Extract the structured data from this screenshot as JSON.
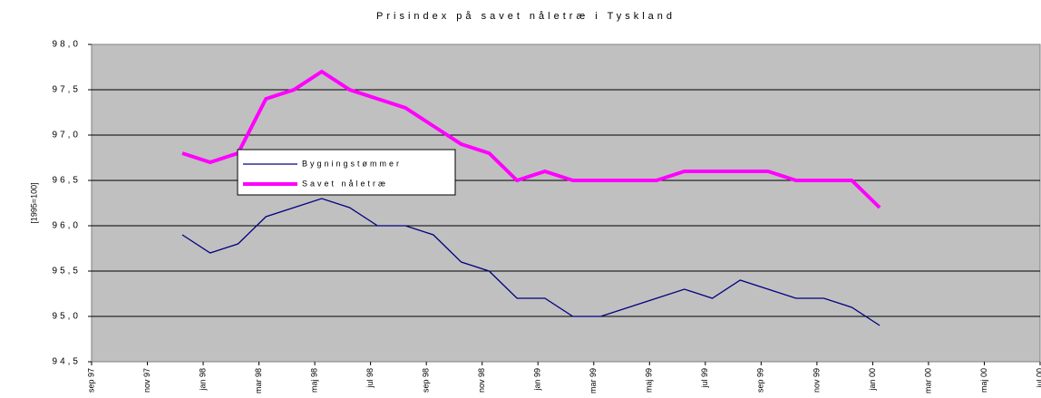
{
  "chart_data": {
    "type": "line",
    "title": "Prisindex på savet nåletræ i Tyskland",
    "y_label": "[1995=100]",
    "x": [
      "1997-12",
      "1998-01",
      "1998-02",
      "1998-03",
      "1998-04",
      "1998-05",
      "1998-06",
      "1998-07",
      "1998-08",
      "1998-09",
      "1998-10",
      "1998-11",
      "1998-12",
      "1999-01",
      "1999-02",
      "1999-03",
      "1999-04",
      "1999-05",
      "1999-06",
      "1999-07",
      "1999-08",
      "1999-09",
      "1999-10",
      "1999-11",
      "1999-12",
      "2000-01"
    ],
    "series": [
      {
        "name": "Bygningstømmer",
        "color": "#000080",
        "values": [
          95.9,
          95.7,
          95.8,
          96.1,
          96.2,
          96.3,
          96.2,
          96.0,
          96.0,
          95.9,
          95.6,
          95.5,
          95.2,
          95.2,
          95.0,
          95.0,
          95.1,
          95.2,
          95.3,
          95.2,
          95.4,
          95.3,
          95.2,
          95.2,
          95.1,
          94.9
        ]
      },
      {
        "name": "Savet nåletræ",
        "color": "#ff00ff",
        "values": [
          96.8,
          96.7,
          96.8,
          97.4,
          97.5,
          97.7,
          97.5,
          97.4,
          97.3,
          97.1,
          96.9,
          96.8,
          96.5,
          96.6,
          96.5,
          96.5,
          96.5,
          96.5,
          96.6,
          96.6,
          96.6,
          96.6,
          96.5,
          96.5,
          96.5,
          96.2
        ]
      }
    ],
    "xlim": [
      "1997-09",
      "2000-07"
    ],
    "xticks": [
      {
        "value": "1997-09",
        "label": "sep 97"
      },
      {
        "value": "1997-11",
        "label": "nov 97"
      },
      {
        "value": "1998-01",
        "label": "jan 98"
      },
      {
        "value": "1998-03",
        "label": "mar 98"
      },
      {
        "value": "1998-05",
        "label": "maj 98"
      },
      {
        "value": "1998-07",
        "label": "jul 98"
      },
      {
        "value": "1998-09",
        "label": "sep 98"
      },
      {
        "value": "1998-11",
        "label": "nov 98"
      },
      {
        "value": "1999-01",
        "label": "jan 99"
      },
      {
        "value": "1999-03",
        "label": "mar 99"
      },
      {
        "value": "1999-05",
        "label": "maj 99"
      },
      {
        "value": "1999-07",
        "label": "jul 99"
      },
      {
        "value": "1999-09",
        "label": "sep 99"
      },
      {
        "value": "1999-11",
        "label": "nov 99"
      },
      {
        "value": "2000-01",
        "label": "jan 00"
      },
      {
        "value": "2000-03",
        "label": "mar 00"
      },
      {
        "value": "2000-05",
        "label": "maj 00"
      },
      {
        "value": "2000-07",
        "label": "jul 00"
      }
    ],
    "ylim": [
      94.5,
      98.0
    ],
    "yticks": [
      {
        "value": 94.5,
        "label": "94,5"
      },
      {
        "value": 95.0,
        "label": "95,0"
      },
      {
        "value": 95.5,
        "label": "95,5"
      },
      {
        "value": 96.0,
        "label": "96,0"
      },
      {
        "value": 96.5,
        "label": "96,5"
      },
      {
        "value": 97.0,
        "label": "97,0"
      },
      {
        "value": 97.5,
        "label": "97,5"
      },
      {
        "value": 98.0,
        "label": "98,0"
      }
    ],
    "grid": true
  }
}
